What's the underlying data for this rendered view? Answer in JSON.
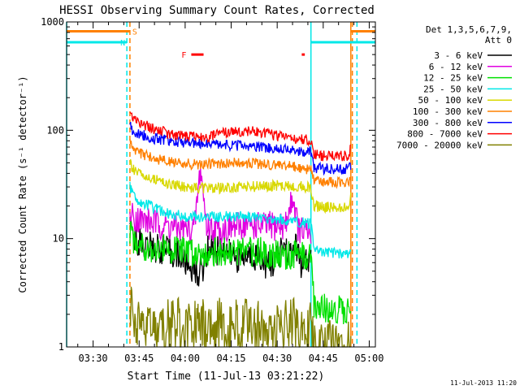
{
  "chart_data": {
    "type": "line",
    "title": "HESSI Observing Summary Count Rates, Corrected",
    "xlabel": "Start Time (11-Jul-13 03:21:22)",
    "ylabel": "Corrected Count Rate (s⁻¹ detector⁻¹)",
    "y_scale": "log",
    "ylim": [
      1,
      1000
    ],
    "xlim": [
      "03:21:22",
      "05:02:00"
    ],
    "x_ticks": [
      "03:30",
      "03:45",
      "04:00",
      "04:15",
      "04:30",
      "04:45",
      "05:00"
    ],
    "y_ticks": [
      "1",
      "10",
      "100",
      "1000"
    ],
    "grid": false,
    "legend_placement": "top-right",
    "legend_header": [
      "Det 1,3,5,6,7,9,",
      "Att 0"
    ],
    "series": [
      {
        "name": "3 - 6 keV",
        "color": "#000000",
        "times": [
          "03:42",
          "03:43",
          "03:45",
          "03:48",
          "03:52",
          "03:55",
          "03:58",
          "04:00",
          "04:02",
          "04:04",
          "04:06",
          "04:08",
          "04:10",
          "04:12",
          "04:15",
          "04:18",
          "04:21",
          "04:24",
          "04:27",
          "04:30",
          "04:32",
          "04:34",
          "04:36",
          "04:38",
          "04:40",
          "04:41"
        ],
        "values": [
          11,
          10,
          9.5,
          8.5,
          8,
          7.5,
          7,
          6,
          5.5,
          4.8,
          5.5,
          9,
          7.5,
          8.5,
          7,
          6.5,
          7,
          7,
          5.5,
          6.5,
          9,
          7,
          8.5,
          5.5,
          6,
          6.5
        ]
      },
      {
        "name": "6 - 12 keV",
        "color": "#e000e0",
        "times": [
          "03:42",
          "03:43",
          "03:45",
          "03:50",
          "03:55",
          "04:00",
          "04:03",
          "04:05",
          "04:07",
          "04:10",
          "04:15",
          "04:20",
          "04:25",
          "04:30",
          "04:33",
          "04:35",
          "04:37",
          "04:40",
          "04:41"
        ],
        "values": [
          17,
          16,
          15,
          14,
          13,
          12,
          12.5,
          45,
          13,
          12,
          12.5,
          13.5,
          13,
          13,
          13.5,
          25,
          12,
          11,
          11
        ]
      },
      {
        "name": "12 - 25 keV",
        "color": "#00e000",
        "times": [
          "03:42",
          "03:43",
          "03:45",
          "03:50",
          "03:55",
          "04:00",
          "04:05",
          "04:10",
          "04:15",
          "04:20",
          "04:25",
          "04:30",
          "04:35",
          "04:40",
          "04:41",
          "04:42",
          "04:45",
          "04:50",
          "04:53",
          "04:54"
        ],
        "values": [
          12,
          10,
          9,
          8,
          8,
          7.5,
          7.5,
          7.5,
          7.5,
          7.5,
          7.5,
          7,
          7,
          6.8,
          6.8,
          2.5,
          2.3,
          2.2,
          2.2,
          2.8
        ]
      },
      {
        "name": "25 - 50 keV",
        "color": "#00e8e8",
        "times": [
          "03:42",
          "03:43",
          "03:45",
          "03:50",
          "03:55",
          "04:00",
          "04:05",
          "04:10",
          "04:15",
          "04:20",
          "04:25",
          "04:30",
          "04:35",
          "04:40",
          "04:41",
          "04:42",
          "04:45",
          "04:50",
          "04:53",
          "04:54"
        ],
        "values": [
          30,
          26,
          22,
          19,
          17,
          16,
          16,
          16,
          16,
          16,
          15.5,
          15,
          14.5,
          14,
          13.5,
          8,
          7.5,
          7.3,
          7.2,
          8
        ]
      },
      {
        "name": "50 - 100 keV",
        "color": "#d8d800",
        "times": [
          "03:42",
          "03:43",
          "03:45",
          "03:50",
          "03:55",
          "04:00",
          "04:05",
          "04:10",
          "04:15",
          "04:20",
          "04:25",
          "04:30",
          "04:35",
          "04:40",
          "04:41",
          "04:42",
          "04:45",
          "04:50",
          "04:53",
          "04:54"
        ],
        "values": [
          50,
          44,
          40,
          36,
          32,
          30,
          29,
          29,
          29.5,
          30,
          30.5,
          31,
          30.5,
          30,
          29.5,
          20,
          19.5,
          19.5,
          19.5,
          24
        ]
      },
      {
        "name": "100 - 300 keV",
        "color": "#ff8000",
        "times": [
          "03:42",
          "03:43",
          "03:45",
          "03:50",
          "03:55",
          "04:00",
          "04:05",
          "04:10",
          "04:15",
          "04:20",
          "04:25",
          "04:30",
          "04:35",
          "04:40",
          "04:41",
          "04:42",
          "04:45",
          "04:50",
          "04:53",
          "04:54"
        ],
        "values": [
          75,
          68,
          62,
          55,
          51,
          49,
          48,
          49,
          50,
          50,
          49,
          48,
          46,
          44,
          43,
          35,
          33,
          33,
          33,
          36
        ]
      },
      {
        "name": "300 - 800 keV",
        "color": "#0000ff",
        "times": [
          "03:42",
          "03:43",
          "03:45",
          "03:50",
          "03:55",
          "04:00",
          "04:05",
          "04:10",
          "04:15",
          "04:20",
          "04:25",
          "04:30",
          "04:35",
          "04:40",
          "04:41",
          "04:42",
          "04:45",
          "04:50",
          "04:53",
          "04:54"
        ],
        "values": [
          110,
          100,
          92,
          84,
          80,
          77,
          75,
          73,
          72,
          71,
          70,
          68,
          66,
          63,
          62,
          45,
          44,
          44,
          44,
          48
        ]
      },
      {
        "name": "800 - 7000 keV",
        "color": "#ff0000",
        "times": [
          "03:42",
          "03:43",
          "03:45",
          "03:50",
          "03:55",
          "04:00",
          "04:05",
          "04:10",
          "04:15",
          "04:20",
          "04:25",
          "04:30",
          "04:35",
          "04:40",
          "04:41",
          "04:42",
          "04:45",
          "04:50",
          "04:53",
          "04:54"
        ],
        "values": [
          150,
          135,
          118,
          102,
          92,
          87,
          86,
          90,
          97,
          99,
          95,
          89,
          85,
          81,
          80,
          60,
          58,
          58,
          58,
          68
        ]
      },
      {
        "name": "7000 - 20000 keV",
        "color": "#808000",
        "times": [
          "03:42",
          "03:43",
          "03:45",
          "03:55",
          "04:05",
          "04:15",
          "04:25",
          "04:35",
          "04:41",
          "04:42",
          "04:50",
          "04:53",
          "04:54"
        ],
        "values": [
          2.5,
          2,
          1.6,
          1.6,
          1.6,
          1.6,
          1.6,
          1.6,
          1.6,
          1,
          1,
          1,
          1
        ]
      }
    ],
    "flag_lines": [
      {
        "color": "#00e8e8",
        "label": "N",
        "style": "solid",
        "level": 650,
        "times": [
          [
            "03:21:22",
            "03:41"
          ],
          [
            "04:41",
            "05:02"
          ]
        ]
      },
      {
        "color": "#ff8000",
        "label": "S",
        "style": "solid",
        "level": 820,
        "times": [
          [
            "03:21:22",
            "03:42"
          ],
          [
            "04:54",
            "05:02"
          ]
        ]
      },
      {
        "color": "#ff0000",
        "label": "F",
        "style": "solid",
        "level": 500,
        "times": [
          [
            "04:02",
            "04:06"
          ],
          [
            "04:38",
            "04:39"
          ]
        ]
      }
    ],
    "vertical_markers": [
      {
        "color": "#00e8e8",
        "style": "solid",
        "time": "03:21:22"
      },
      {
        "color": "#00e8e8",
        "style": "dashed",
        "time": "03:41"
      },
      {
        "color": "#ff8000",
        "style": "dashed",
        "time": "03:42"
      },
      {
        "color": "#00e8e8",
        "style": "solid",
        "time": "04:41"
      },
      {
        "color": "#ff8000",
        "style": "solid",
        "time": "04:54"
      },
      {
        "color": "#ff8000",
        "style": "dashed",
        "time": "04:54:30"
      },
      {
        "color": "#00e8e8",
        "style": "dashed",
        "time": "04:56"
      }
    ]
  },
  "footer": {
    "timestamp": "11-Jul-2013 11:20"
  }
}
